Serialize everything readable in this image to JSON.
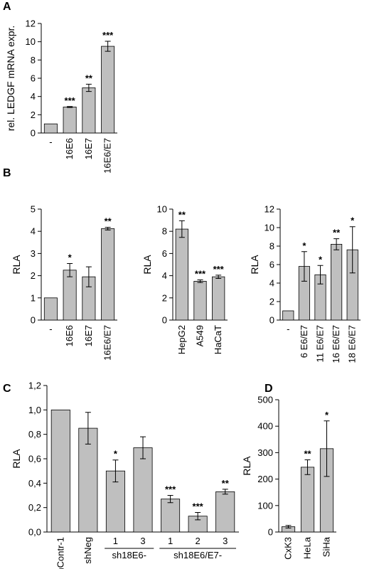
{
  "chart_data": [
    {
      "type": "bar",
      "panel": "A",
      "y_label": "rel. LEDGF mRNA expr.",
      "categories": [
        "-",
        "16E6",
        "16E7",
        "16E6/E7"
      ],
      "values": [
        1,
        2.85,
        4.95,
        9.5
      ],
      "errors": [
        null,
        0.05,
        0.4,
        0.55
      ],
      "significance": [
        null,
        "***",
        "**",
        "***"
      ],
      "ylim": [
        0,
        12
      ],
      "yticks": [
        0,
        2,
        4,
        6,
        8,
        10,
        12
      ],
      "color": "#bfbfbf"
    },
    {
      "type": "bar",
      "panel": "B",
      "y_label": "RLA",
      "categories": [
        "-",
        "16E6",
        "16E7",
        "16E6/E7"
      ],
      "values": [
        1,
        2.25,
        1.95,
        4.12
      ],
      "errors": [
        null,
        0.3,
        0.45,
        0.06
      ],
      "significance": [
        null,
        "*",
        null,
        "**"
      ],
      "ylim": [
        0,
        5
      ],
      "yticks": [
        0,
        1,
        2,
        3,
        4,
        5
      ],
      "color": "#bfbfbf"
    },
    {
      "type": "bar",
      "y_label": "RLA",
      "categories": [
        "HepG2",
        "A549",
        "HaCaT"
      ],
      "values": [
        8.2,
        3.5,
        3.9
      ],
      "errors": [
        0.75,
        0.12,
        0.15
      ],
      "significance": [
        "**",
        "***",
        "***"
      ],
      "ylim": [
        0,
        10
      ],
      "yticks": [
        0,
        2,
        4,
        6,
        8,
        10
      ],
      "color": "#bfbfbf"
    },
    {
      "type": "bar",
      "y_label": "RLA",
      "categories": [
        "-",
        "6 E6/E7",
        "11 E6/E7",
        "16 E6/E7",
        "18 E6/E7"
      ],
      "values": [
        1,
        5.8,
        4.9,
        8.2,
        7.6
      ],
      "errors": [
        null,
        1.6,
        1.0,
        0.6,
        2.5
      ],
      "significance": [
        null,
        "*",
        "*",
        "**",
        "*"
      ],
      "ylim": [
        0,
        12
      ],
      "yticks": [
        0,
        2,
        4,
        6,
        8,
        10,
        12
      ],
      "color": "#bfbfbf"
    },
    {
      "type": "bar",
      "panel": "C",
      "y_label": "RLA",
      "categories": [
        "shContr-1",
        "shNeg",
        "1",
        "3",
        "1",
        "2",
        "3"
      ],
      "groups": [
        {
          "label": "sh18E6-",
          "from": 2,
          "to": 3
        },
        {
          "label": "sh18E6/E7-",
          "from": 4,
          "to": 6
        }
      ],
      "values": [
        1.0,
        0.85,
        0.5,
        0.69,
        0.27,
        0.13,
        0.33
      ],
      "errors": [
        null,
        0.13,
        0.09,
        0.09,
        0.03,
        0.03,
        0.02
      ],
      "significance": [
        null,
        null,
        "*",
        null,
        "***",
        "***",
        "**"
      ],
      "ylim": [
        0,
        1.2
      ],
      "yticks": [
        {
          "value": 0,
          "label": "0,0"
        },
        {
          "value": 0.2,
          "label": "0,2"
        },
        {
          "value": 0.4,
          "label": "0,4"
        },
        {
          "value": 0.6,
          "label": "0,6"
        },
        {
          "value": 0.8,
          "label": "0,8"
        },
        {
          "value": 1.0,
          "label": "1,0"
        },
        {
          "value": 1.2,
          "label": "1,2"
        }
      ],
      "color": "#bfbfbf"
    },
    {
      "type": "bar",
      "panel": "D",
      "y_label": "RLA",
      "categories": [
        "CxK3",
        "HeLa",
        "SiHa"
      ],
      "values": [
        20,
        245,
        315
      ],
      "errors": [
        5,
        28,
        105
      ],
      "significance": [
        null,
        "**",
        "*"
      ],
      "ylim": [
        0,
        500
      ],
      "yticks": [
        0,
        100,
        200,
        300,
        400,
        500
      ],
      "color": "#bfbfbf"
    }
  ]
}
